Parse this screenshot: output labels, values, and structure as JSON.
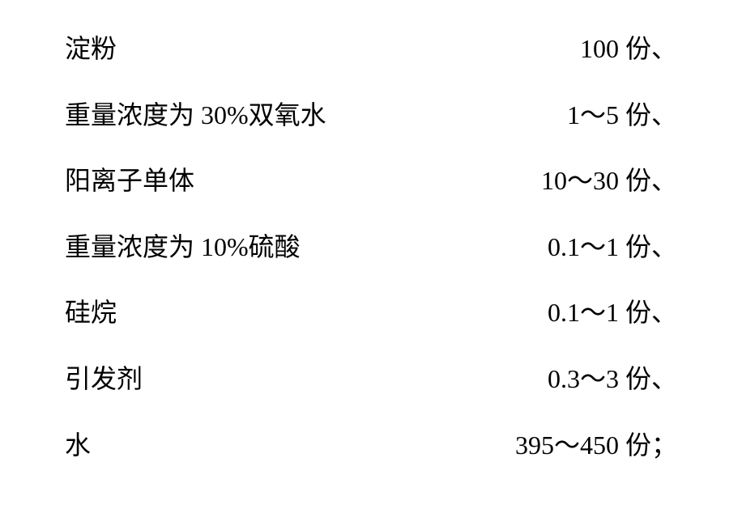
{
  "rows": [
    {
      "label": "淀粉",
      "value": "100 份、"
    },
    {
      "label": "重量浓度为 30%双氧水",
      "value": "1～5 份、"
    },
    {
      "label": "阳离子单体",
      "value": "10～30 份、"
    },
    {
      "label": "重量浓度为 10%硫酸",
      "value": "0.1～1 份、"
    },
    {
      "label": "硅烷",
      "value": "0.1～1 份、"
    },
    {
      "label": "引发剂",
      "value": "0.3～3 份、"
    },
    {
      "label": "水",
      "value": "395～450 份；"
    }
  ]
}
